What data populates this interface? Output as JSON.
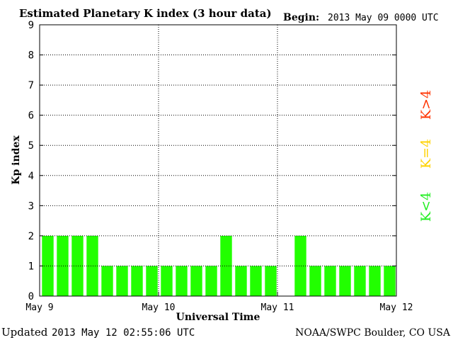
{
  "header": {
    "title": "Estimated Planetary K index (3 hour data)",
    "begin_label": "Begin:",
    "begin_value": "2013 May 09 0000 UTC"
  },
  "footer": {
    "updated_label": "Updated",
    "updated_value": "2013 May 12 02:55:06 UTC",
    "source": "NOAA/SWPC Boulder, CO USA"
  },
  "legend": {
    "low": {
      "text": "K<4",
      "color": "#22ee22"
    },
    "mid": {
      "text": "K=4",
      "color": "#ffd200"
    },
    "high": {
      "text": "K>4",
      "color": "#ff3300"
    }
  },
  "chart_data": {
    "type": "bar",
    "title": "Estimated Planetary K index (3 hour data)",
    "xlabel": "Universal Time",
    "ylabel": "Kp index",
    "ylim": [
      0,
      9
    ],
    "yticks": [
      "0",
      "1",
      "2",
      "3",
      "4",
      "5",
      "6",
      "7",
      "8",
      "9"
    ],
    "xtick_labels": [
      "May 9",
      "May 10",
      "May 11",
      "May 12"
    ],
    "grid": true,
    "interval_hours": 3,
    "values": [
      2,
      2,
      2,
      2,
      1,
      1,
      1,
      1,
      1,
      1,
      1,
      1,
      2,
      1,
      1,
      1,
      null,
      2,
      1,
      1,
      1,
      1,
      1,
      1
    ],
    "bar_color": "#22ff00"
  }
}
